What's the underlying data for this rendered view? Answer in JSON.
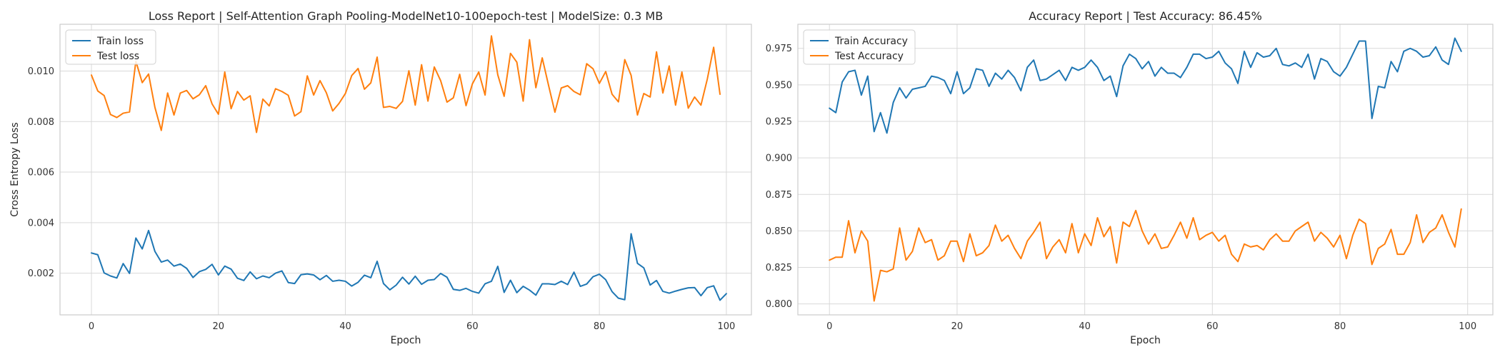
{
  "chart_data": [
    {
      "type": "line",
      "title": "Loss Report | Self-Attention Graph Pooling-ModelNet10-100epoch-test | ModelSize: 0.3 MB",
      "xlabel": "Epoch",
      "ylabel": "Cross Entropy Loss",
      "xlim": [
        -4.95,
        103.95
      ],
      "ylim": [
        0.00035,
        0.01185
      ],
      "xticks": [
        0,
        20,
        40,
        60,
        80,
        100
      ],
      "yticks": [
        0.002,
        0.004,
        0.006,
        0.008,
        0.01
      ],
      "ytick_labels": [
        "0.002",
        "0.004",
        "0.006",
        "0.008",
        "0.010"
      ],
      "grid": true,
      "legend": "top-left",
      "series": [
        {
          "name": "Train loss",
          "color": "#1f77b4",
          "values": [
            0.0028,
            0.00273,
            0.00201,
            0.00189,
            0.00181,
            0.00238,
            0.00199,
            0.00339,
            0.00296,
            0.00369,
            0.00286,
            0.00244,
            0.00252,
            0.00228,
            0.00236,
            0.00219,
            0.00183,
            0.00206,
            0.00215,
            0.00235,
            0.00193,
            0.00228,
            0.00216,
            0.0018,
            0.00171,
            0.00205,
            0.00178,
            0.00189,
            0.00182,
            0.002,
            0.00209,
            0.00163,
            0.00159,
            0.00194,
            0.00197,
            0.00193,
            0.00174,
            0.00191,
            0.00168,
            0.00172,
            0.00168,
            0.00149,
            0.00164,
            0.00192,
            0.00182,
            0.00247,
            0.00159,
            0.00134,
            0.00153,
            0.00184,
            0.00157,
            0.00188,
            0.00156,
            0.00172,
            0.00175,
            0.00199,
            0.00184,
            0.00136,
            0.00132,
            0.0014,
            0.00128,
            0.00121,
            0.00158,
            0.00168,
            0.00227,
            0.00124,
            0.00172,
            0.00123,
            0.00148,
            0.00133,
            0.00113,
            0.00158,
            0.00158,
            0.00155,
            0.00168,
            0.00155,
            0.00204,
            0.00148,
            0.00157,
            0.00186,
            0.00196,
            0.00174,
            0.00127,
            0.00101,
            0.00095,
            0.00356,
            0.00239,
            0.00221,
            0.00153,
            0.00171,
            0.00128,
            0.00121,
            0.00129,
            0.00136,
            0.00142,
            0.00143,
            0.00111,
            0.00143,
            0.0015,
            0.00093,
            0.00119
          ]
        },
        {
          "name": "Test loss",
          "color": "#ff7f0e",
          "values": [
            0.00984,
            0.00921,
            0.00903,
            0.00828,
            0.00816,
            0.00833,
            0.00838,
            0.01039,
            0.00954,
            0.00988,
            0.00856,
            0.00765,
            0.00913,
            0.00826,
            0.00913,
            0.00923,
            0.0089,
            0.00906,
            0.00942,
            0.0087,
            0.00829,
            0.00996,
            0.00851,
            0.00919,
            0.00885,
            0.00902,
            0.00757,
            0.00889,
            0.00862,
            0.0093,
            0.00919,
            0.00904,
            0.00822,
            0.00839,
            0.00981,
            0.00905,
            0.00962,
            0.00914,
            0.00842,
            0.00872,
            0.00911,
            0.00982,
            0.0101,
            0.00928,
            0.00953,
            0.01055,
            0.00856,
            0.0086,
            0.00852,
            0.0088,
            0.01001,
            0.00865,
            0.01025,
            0.00881,
            0.01016,
            0.00962,
            0.00877,
            0.00894,
            0.00987,
            0.00863,
            0.00949,
            0.00996,
            0.00905,
            0.01139,
            0.00985,
            0.009,
            0.0107,
            0.01035,
            0.00881,
            0.01124,
            0.00934,
            0.01052,
            0.00943,
            0.00837,
            0.00933,
            0.00942,
            0.00919,
            0.00906,
            0.01029,
            0.01009,
            0.00951,
            0.00998,
            0.00908,
            0.00878,
            0.01045,
            0.00983,
            0.00826,
            0.00911,
            0.00897,
            0.01076,
            0.00913,
            0.0102,
            0.00865,
            0.00996,
            0.00853,
            0.00897,
            0.00865,
            0.00968,
            0.01094,
            0.00908
          ]
        }
      ]
    },
    {
      "type": "line",
      "title": "Accuracy Report | Test Accuracy: 86.45%",
      "xlabel": "Epoch",
      "ylabel": "",
      "xlim": [
        -4.95,
        103.95
      ],
      "ylim": [
        0.7925,
        0.9915
      ],
      "xticks": [
        0,
        20,
        40,
        60,
        80,
        100
      ],
      "yticks": [
        0.8,
        0.825,
        0.85,
        0.875,
        0.9,
        0.925,
        0.95,
        0.975
      ],
      "ytick_labels": [
        "0.800",
        "0.825",
        "0.850",
        "0.875",
        "0.900",
        "0.925",
        "0.950",
        "0.975"
      ],
      "grid": true,
      "legend": "top-left",
      "series": [
        {
          "name": "Train Accuracy",
          "color": "#1f77b4",
          "values": [
            0.934,
            0.931,
            0.952,
            0.959,
            0.96,
            0.943,
            0.956,
            0.918,
            0.931,
            0.917,
            0.938,
            0.948,
            0.941,
            0.947,
            0.948,
            0.949,
            0.956,
            0.955,
            0.953,
            0.944,
            0.959,
            0.944,
            0.948,
            0.961,
            0.96,
            0.949,
            0.958,
            0.954,
            0.96,
            0.955,
            0.946,
            0.962,
            0.967,
            0.953,
            0.954,
            0.957,
            0.96,
            0.953,
            0.962,
            0.96,
            0.962,
            0.967,
            0.962,
            0.953,
            0.956,
            0.942,
            0.963,
            0.971,
            0.968,
            0.961,
            0.966,
            0.956,
            0.962,
            0.958,
            0.958,
            0.955,
            0.962,
            0.971,
            0.971,
            0.968,
            0.969,
            0.973,
            0.965,
            0.961,
            0.951,
            0.973,
            0.962,
            0.972,
            0.969,
            0.97,
            0.975,
            0.964,
            0.963,
            0.965,
            0.962,
            0.971,
            0.954,
            0.968,
            0.966,
            0.959,
            0.956,
            0.962,
            0.971,
            0.98,
            0.98,
            0.927,
            0.949,
            0.948,
            0.966,
            0.959,
            0.973,
            0.975,
            0.973,
            0.969,
            0.97,
            0.976,
            0.967,
            0.964,
            0.982,
            0.973
          ]
        },
        {
          "name": "Test Accuracy",
          "color": "#ff7f0e",
          "values": [
            0.83,
            0.832,
            0.832,
            0.857,
            0.835,
            0.85,
            0.843,
            0.802,
            0.823,
            0.822,
            0.824,
            0.852,
            0.83,
            0.836,
            0.852,
            0.842,
            0.844,
            0.83,
            0.833,
            0.843,
            0.843,
            0.829,
            0.848,
            0.833,
            0.835,
            0.84,
            0.854,
            0.843,
            0.847,
            0.838,
            0.831,
            0.843,
            0.849,
            0.856,
            0.831,
            0.839,
            0.844,
            0.835,
            0.855,
            0.835,
            0.848,
            0.84,
            0.859,
            0.846,
            0.853,
            0.828,
            0.856,
            0.853,
            0.864,
            0.85,
            0.841,
            0.848,
            0.838,
            0.839,
            0.847,
            0.856,
            0.845,
            0.859,
            0.844,
            0.847,
            0.849,
            0.843,
            0.847,
            0.834,
            0.829,
            0.841,
            0.839,
            0.84,
            0.837,
            0.844,
            0.848,
            0.843,
            0.843,
            0.85,
            0.853,
            0.856,
            0.843,
            0.849,
            0.845,
            0.839,
            0.847,
            0.831,
            0.847,
            0.858,
            0.855,
            0.827,
            0.838,
            0.841,
            0.851,
            0.834,
            0.834,
            0.842,
            0.861,
            0.842,
            0.849,
            0.852,
            0.861,
            0.849,
            0.839,
            0.865
          ]
        }
      ]
    }
  ]
}
